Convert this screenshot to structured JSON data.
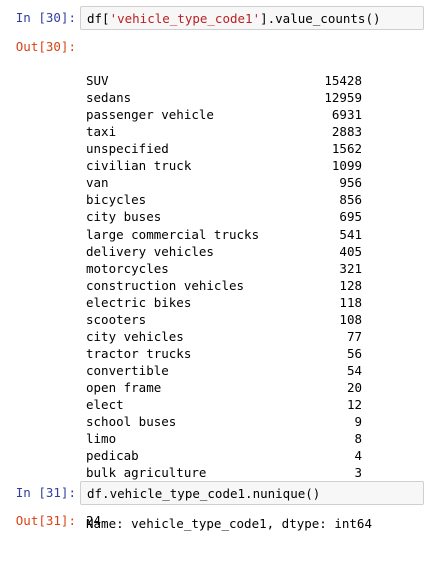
{
  "cell30": {
    "in_prompt": "In [30]:",
    "code_prefix": "df[",
    "code_string": "'vehicle_type_code1'",
    "code_suffix": "].value_counts()",
    "out_prompt": "Out[30]:",
    "rows": [
      {
        "label": "SUV",
        "count": "15428"
      },
      {
        "label": "sedans",
        "count": "12959"
      },
      {
        "label": "passenger vehicle",
        "count": "6931"
      },
      {
        "label": "taxi",
        "count": "2883"
      },
      {
        "label": "unspecified",
        "count": "1562"
      },
      {
        "label": "civilian truck",
        "count": "1099"
      },
      {
        "label": "van",
        "count": "956"
      },
      {
        "label": "bicycles",
        "count": "856"
      },
      {
        "label": "city buses",
        "count": "695"
      },
      {
        "label": "large commercial trucks",
        "count": "541"
      },
      {
        "label": "delivery vehicles",
        "count": "405"
      },
      {
        "label": "motorcycles",
        "count": "321"
      },
      {
        "label": "construction vehicles",
        "count": "128"
      },
      {
        "label": "electric bikes",
        "count": "118"
      },
      {
        "label": "scooters",
        "count": "108"
      },
      {
        "label": "city vehicles",
        "count": "77"
      },
      {
        "label": "tractor trucks",
        "count": "56"
      },
      {
        "label": "convertible",
        "count": "54"
      },
      {
        "label": "open frame",
        "count": "20"
      },
      {
        "label": "elect",
        "count": "12"
      },
      {
        "label": "school buses",
        "count": "9"
      },
      {
        "label": "limo",
        "count": "8"
      },
      {
        "label": "pedicab",
        "count": "4"
      },
      {
        "label": "bulk agriculture",
        "count": "3"
      }
    ],
    "footer": "Name: vehicle_type_code1, dtype: int64"
  },
  "cell31": {
    "in_prompt": "In [31]:",
    "code": "df.vehicle_type_code1.nunique()",
    "out_prompt": "Out[31]:",
    "result": "24"
  }
}
